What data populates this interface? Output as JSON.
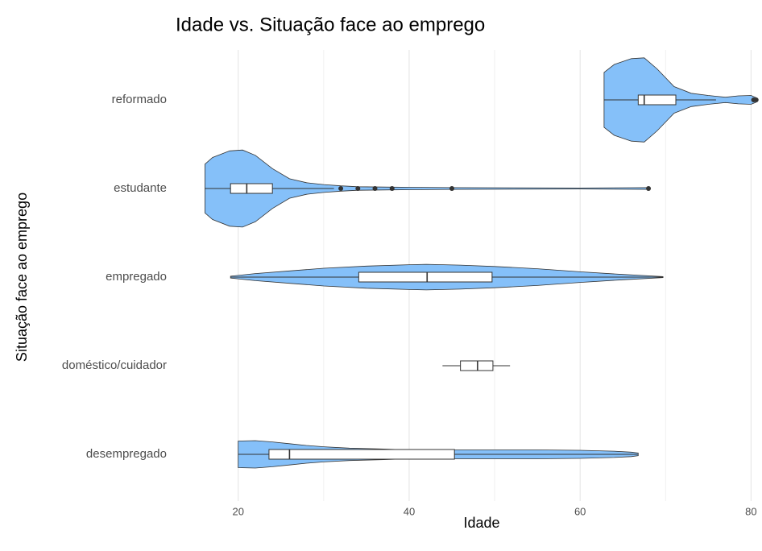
{
  "chart_data": {
    "type": "violin",
    "title": "Idade vs. Situação face ao emprego",
    "x_label": "Idade",
    "y_label": "Situação face ao emprego",
    "color": "#85c0f9",
    "xlim": [
      15.5,
      81
    ],
    "xticks": [
      20,
      40,
      60,
      80
    ],
    "minor_xticks": [
      30,
      50,
      70
    ],
    "grid": true,
    "categories": [
      "reformado",
      "estudante",
      "empregado",
      "doméstico/cuidador",
      "desempregado"
    ],
    "series": [
      {
        "name": "reformado",
        "min": 62.8,
        "q1": 66.8,
        "median": 67.5,
        "q3": 71.2,
        "max": 75.9,
        "outliers": [
          80.3,
          80.6
        ],
        "violin": {
          "x": [
            62.8,
            64,
            66,
            67.5,
            69,
            71,
            73,
            75,
            77,
            78.5,
            80,
            80.6
          ],
          "density": [
            0.62,
            0.8,
            0.93,
            0.95,
            0.7,
            0.3,
            0.15,
            0.1,
            0.06,
            0.09,
            0.1,
            0.05
          ]
        }
      },
      {
        "name": "estudante",
        "min": 16.1,
        "q1": 19.1,
        "median": 21.0,
        "q3": 24.0,
        "max": 31.2,
        "outliers": [
          32,
          34,
          36,
          38,
          45,
          68
        ],
        "violin": {
          "x": [
            16.1,
            17,
            19,
            20.5,
            22,
            24,
            26,
            28,
            30,
            32,
            34,
            38,
            45,
            60,
            67.9
          ],
          "density": [
            0.55,
            0.7,
            0.85,
            0.87,
            0.75,
            0.45,
            0.22,
            0.13,
            0.09,
            0.06,
            0.04,
            0.03,
            0.02,
            0.01,
            0.02
          ]
        }
      },
      {
        "name": "empregado",
        "min": 19.1,
        "q1": 34.1,
        "median": 42.1,
        "q3": 49.7,
        "max": 69.7,
        "outliers": [],
        "violin": {
          "x": [
            19.1,
            22,
            26,
            30,
            35,
            40,
            42,
            46,
            50,
            55,
            60,
            65,
            69.7
          ],
          "density": [
            0.02,
            0.08,
            0.14,
            0.2,
            0.25,
            0.28,
            0.29,
            0.27,
            0.24,
            0.19,
            0.12,
            0.06,
            0.01
          ]
        }
      },
      {
        "name": "doméstico/cuidador",
        "min": 43.9,
        "q1": 46.0,
        "median": 48.0,
        "q3": 49.8,
        "max": 51.8,
        "outliers": [],
        "violin": {
          "x": [],
          "density": []
        }
      },
      {
        "name": "desempregado",
        "min": 20,
        "q1": 23.6,
        "median": 26.0,
        "q3": 45.3,
        "max": 66.8,
        "outliers": [],
        "violin": {
          "x": [
            20,
            22,
            24,
            26,
            28,
            30,
            33,
            37,
            40,
            45,
            50,
            55,
            60,
            64,
            66,
            66.8
          ],
          "density": [
            0.3,
            0.31,
            0.28,
            0.24,
            0.2,
            0.17,
            0.14,
            0.12,
            0.1,
            0.1,
            0.1,
            0.1,
            0.09,
            0.07,
            0.05,
            0.03
          ]
        }
      }
    ]
  }
}
